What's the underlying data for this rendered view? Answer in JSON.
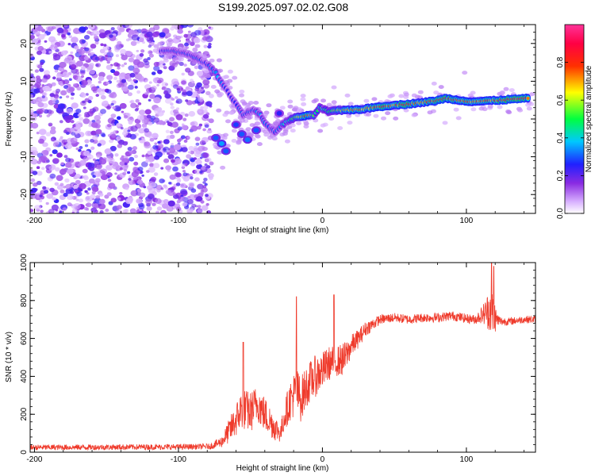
{
  "figure": {
    "title": "S199.2025.097.02.02.G08"
  },
  "colors": {
    "axis": "#000000",
    "snr_line": "#ef3b2c",
    "background": "#ffffff"
  },
  "chart_data": [
    {
      "type": "heatmap",
      "xlabel": "Height of straight line (km)",
      "ylabel": "Frequency (Hz)",
      "xlim": [
        -203,
        148
      ],
      "ylim": [
        -25,
        25
      ],
      "xticks": [
        -200,
        -100,
        0,
        100
      ],
      "xtick_labels": [
        "-200",
        "-100",
        "0",
        "100"
      ],
      "yticks": [
        -20,
        -10,
        0,
        10,
        20
      ],
      "ytick_labels": [
        "-20",
        "-10",
        "0",
        "10",
        "20"
      ],
      "colorbar": {
        "label": "Normalized spectral amplitude",
        "range": [
          0,
          1
        ],
        "ticks": [
          0.0,
          0.2,
          0.4,
          0.6,
          0.8
        ],
        "tick_labels": [
          "0.0",
          "0.2",
          "0.4",
          "0.6",
          "0.8"
        ],
        "colormap": "rainbow (white-purple-blue-cyan-green-yellow-red-magenta)"
      },
      "noise_region": {
        "x_range": [
          -203,
          -77
        ],
        "y_range": [
          -25,
          25
        ],
        "amplitude_range": [
          0.05,
          0.25
        ]
      },
      "ridge": [
        {
          "x": -112,
          "y": 18.0,
          "amp": 0.25
        },
        {
          "x": -105,
          "y": 18.0,
          "amp": 0.3
        },
        {
          "x": -96,
          "y": 17.5,
          "amp": 0.3
        },
        {
          "x": -88,
          "y": 16.2,
          "amp": 0.3
        },
        {
          "x": -80,
          "y": 14.5,
          "amp": 0.28
        },
        {
          "x": -74,
          "y": 12.2,
          "amp": 0.38
        },
        {
          "x": -70,
          "y": 9.5,
          "amp": 0.3
        },
        {
          "x": -66,
          "y": 7.5,
          "amp": 0.25
        },
        {
          "x": -62,
          "y": 5.0,
          "amp": 0.28
        },
        {
          "x": -58,
          "y": 3.0,
          "amp": 0.3
        },
        {
          "x": -55,
          "y": 1.0,
          "amp": 0.3
        },
        {
          "x": -48,
          "y": 2.5,
          "amp": 0.32
        },
        {
          "x": -43,
          "y": 1.0,
          "amp": 0.34
        },
        {
          "x": -40,
          "y": -1.0,
          "amp": 0.33
        },
        {
          "x": -36,
          "y": -2.5,
          "amp": 0.35
        },
        {
          "x": -33,
          "y": -3.5,
          "amp": 0.3
        },
        {
          "x": -28,
          "y": -1.5,
          "amp": 0.35
        },
        {
          "x": -24,
          "y": -0.5,
          "amp": 0.45
        },
        {
          "x": -18,
          "y": 0.5,
          "amp": 0.55
        },
        {
          "x": -12,
          "y": 0.8,
          "amp": 0.8
        },
        {
          "x": -6,
          "y": 1.0,
          "amp": 0.55
        },
        {
          "x": -2,
          "y": 3.0,
          "amp": 0.45
        },
        {
          "x": 4,
          "y": 2.0,
          "amp": 0.5
        },
        {
          "x": 10,
          "y": 2.2,
          "amp": 0.6
        },
        {
          "x": 18,
          "y": 2.4,
          "amp": 0.75
        },
        {
          "x": 28,
          "y": 2.6,
          "amp": 0.7
        },
        {
          "x": 38,
          "y": 3.2,
          "amp": 0.85
        },
        {
          "x": 48,
          "y": 3.6,
          "amp": 0.75
        },
        {
          "x": 58,
          "y": 3.9,
          "amp": 0.85
        },
        {
          "x": 68,
          "y": 4.3,
          "amp": 0.75
        },
        {
          "x": 78,
          "y": 4.8,
          "amp": 0.8
        },
        {
          "x": 86,
          "y": 5.5,
          "amp": 0.82
        },
        {
          "x": 94,
          "y": 5.0,
          "amp": 0.75
        },
        {
          "x": 104,
          "y": 4.6,
          "amp": 0.7
        },
        {
          "x": 114,
          "y": 4.8,
          "amp": 0.75
        },
        {
          "x": 124,
          "y": 5.0,
          "amp": 0.85
        },
        {
          "x": 134,
          "y": 5.3,
          "amp": 0.88
        },
        {
          "x": 144,
          "y": 5.5,
          "amp": 0.85
        }
      ],
      "secondary_features": [
        {
          "x": -74,
          "y": -5.0,
          "amp": 0.3
        },
        {
          "x": -70,
          "y": -6.5,
          "amp": 0.35
        },
        {
          "x": -67,
          "y": -8.5,
          "amp": 0.3
        },
        {
          "x": -60,
          "y": -1.5,
          "amp": 0.28
        },
        {
          "x": -56,
          "y": -4.0,
          "amp": 0.3
        },
        {
          "x": -52,
          "y": -5.5,
          "amp": 0.32
        },
        {
          "x": -46,
          "y": -3.0,
          "amp": 0.3
        },
        {
          "x": -30,
          "y": 1.5,
          "amp": 0.25
        }
      ]
    },
    {
      "type": "line",
      "xlabel": "Height of straight line (km)",
      "ylabel": "SNR (10 * v/v)",
      "xlim": [
        -203,
        148
      ],
      "ylim": [
        0,
        1000
      ],
      "xticks": [
        -200,
        -100,
        0,
        100
      ],
      "xtick_labels": [
        "-200",
        "-100",
        "0",
        "100"
      ],
      "yticks": [
        0,
        200,
        400,
        600,
        800,
        1000
      ],
      "ytick_labels": [
        "0",
        "200",
        "400",
        "600",
        "800",
        "1000"
      ],
      "grid": false,
      "legend": "none",
      "series": [
        {
          "profile_x": [
            -203,
            -100,
            -78,
            -70,
            -64,
            -60,
            -56,
            -50,
            -45,
            -42,
            -38,
            -33,
            -29,
            -26,
            -22,
            -18,
            -15,
            -10,
            -5,
            0,
            5,
            10,
            15,
            20,
            25,
            30,
            40,
            50,
            60,
            70,
            80,
            90,
            100,
            106,
            110,
            114,
            117,
            119,
            121,
            124,
            130,
            140,
            148
          ],
          "profile_mean": [
            25,
            28,
            30,
            55,
            120,
            170,
            230,
            210,
            260,
            220,
            180,
            130,
            100,
            200,
            280,
            320,
            280,
            360,
            400,
            430,
            470,
            480,
            490,
            560,
            600,
            650,
            700,
            710,
            700,
            710,
            710,
            720,
            705,
            700,
            720,
            740,
            760,
            720,
            700,
            690,
            690,
            700,
            700
          ],
          "profile_noise": [
            15,
            15,
            15,
            30,
            70,
            90,
            110,
            110,
            100,
            100,
            90,
            70,
            50,
            80,
            110,
            130,
            120,
            110,
            110,
            100,
            90,
            80,
            90,
            60,
            50,
            40,
            25,
            25,
            25,
            25,
            25,
            25,
            25,
            25,
            40,
            80,
            140,
            120,
            40,
            25,
            20,
            20,
            20
          ],
          "spikes": [
            {
              "x": -55,
              "y": 580
            },
            {
              "x": -18,
              "y": 820
            },
            {
              "x": 8,
              "y": 830
            },
            {
              "x": 117.5,
              "y": 1000
            },
            {
              "x": 119,
              "y": 980
            }
          ]
        }
      ]
    }
  ]
}
